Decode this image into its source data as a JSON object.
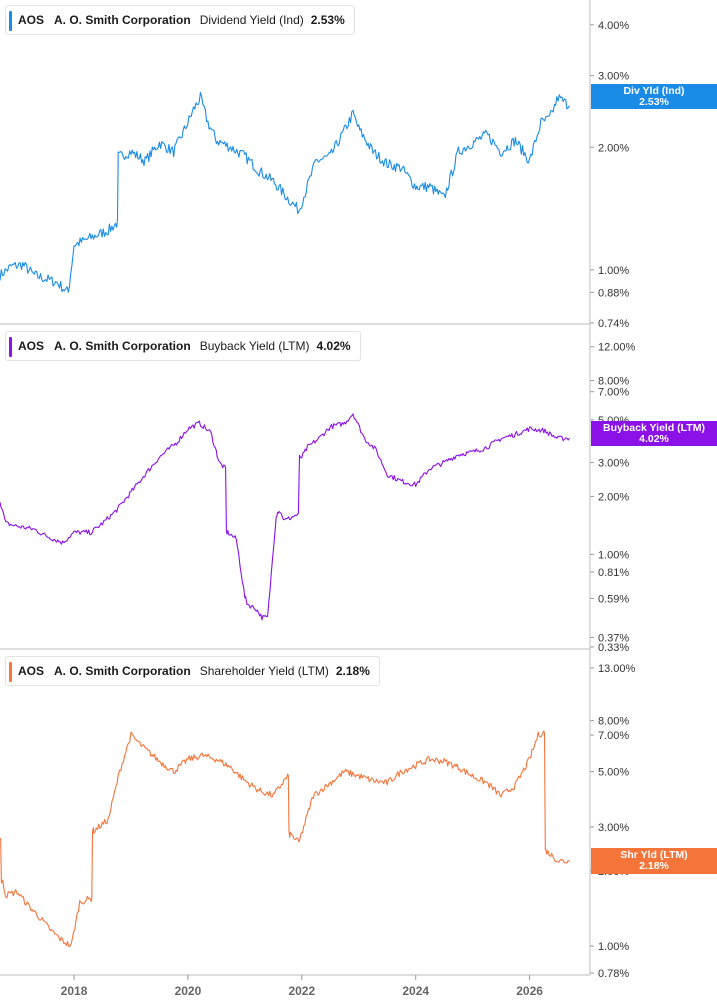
{
  "chart_data": [
    {
      "type": "line",
      "ticker": "AOS",
      "company": "A. O. Smith Corporation",
      "metric": "Dividend Yield (Ind)",
      "latest_value": "2.53%",
      "tag_label": "Div Yld (Ind)",
      "tag_value": "2.53%",
      "color": "#1a8ce8",
      "y_scale": "log",
      "ylim": [
        0.74,
        4.3
      ],
      "y_ticks": [
        "4.00%",
        "3.00%",
        "2.00%",
        "1.00%",
        "0.88%",
        "0.74%"
      ],
      "y_tick_values": [
        4.0,
        3.0,
        2.0,
        1.0,
        0.88,
        0.74
      ],
      "x": [
        2016.7,
        2016.9,
        2017.1,
        2017.3,
        2017.5,
        2017.7,
        2017.9,
        2018.0,
        2018.3,
        2018.6,
        2018.75,
        2018.8,
        2019.0,
        2019.25,
        2019.5,
        2019.75,
        2020.0,
        2020.1,
        2020.22,
        2020.35,
        2020.5,
        2020.75,
        2021.0,
        2021.25,
        2021.5,
        2021.75,
        2021.95,
        2022.25,
        2022.5,
        2022.75,
        2022.9,
        2023.0,
        2023.25,
        2023.5,
        2023.75,
        2024.0,
        2024.25,
        2024.5,
        2024.75,
        2025.0,
        2025.25,
        2025.5,
        2025.75,
        2026.0,
        2026.2,
        2026.35,
        2026.5,
        2026.7
      ],
      "y": [
        0.97,
        1.02,
        1.03,
        0.97,
        0.95,
        0.93,
        0.88,
        1.15,
        1.2,
        1.25,
        1.3,
        1.9,
        1.95,
        1.85,
        2.05,
        1.95,
        2.3,
        2.48,
        2.65,
        2.3,
        2.08,
        2.0,
        1.9,
        1.75,
        1.65,
        1.5,
        1.4,
        1.85,
        1.9,
        2.2,
        2.42,
        2.22,
        1.95,
        1.82,
        1.78,
        1.6,
        1.6,
        1.5,
        1.95,
        2.05,
        2.15,
        1.95,
        2.08,
        1.85,
        2.3,
        2.35,
        2.65,
        2.53
      ]
    },
    {
      "type": "line",
      "ticker": "AOS",
      "company": "A. O. Smith Corporation",
      "metric": "Buyback Yield (LTM)",
      "latest_value": "4.02%",
      "tag_label": "Buyback Yield (LTM)",
      "tag_value": "4.02%",
      "color": "#8b11e8",
      "y_scale": "log",
      "ylim": [
        0.33,
        13.0
      ],
      "y_ticks": [
        "12.00%",
        "8.00%",
        "7.00%",
        "5.00%",
        "3.00%",
        "2.00%",
        "1.00%",
        "0.81%",
        "0.59%",
        "0.37%",
        "0.33%"
      ],
      "y_tick_values": [
        12.0,
        8.0,
        7.0,
        5.0,
        3.0,
        2.0,
        1.0,
        0.81,
        0.59,
        0.37,
        0.33
      ],
      "x": [
        2016.7,
        2016.8,
        2017.0,
        2017.3,
        2017.5,
        2017.8,
        2018.0,
        2018.3,
        2018.5,
        2018.75,
        2019.0,
        2019.2,
        2019.5,
        2019.8,
        2020.0,
        2020.2,
        2020.4,
        2020.5,
        2020.55,
        2020.65,
        2020.7,
        2020.85,
        2021.0,
        2021.05,
        2021.2,
        2021.3,
        2021.4,
        2021.55,
        2021.6,
        2021.7,
        2021.9,
        2022.0,
        2022.1,
        2022.3,
        2022.5,
        2022.75,
        2022.9,
        2023.1,
        2023.3,
        2023.5,
        2023.75,
        2024.0,
        2024.25,
        2024.5,
        2024.75,
        2025.0,
        2025.25,
        2025.5,
        2025.75,
        2026.0,
        2026.25,
        2026.5,
        2026.7
      ],
      "y": [
        1.9,
        1.45,
        1.4,
        1.35,
        1.25,
        1.15,
        1.3,
        1.3,
        1.45,
        1.7,
        2.1,
        2.5,
        3.2,
        3.8,
        4.5,
        4.8,
        4.3,
        3.4,
        3.0,
        2.8,
        1.3,
        1.2,
        0.6,
        0.55,
        0.52,
        0.47,
        0.47,
        1.6,
        1.7,
        1.5,
        1.6,
        3.2,
        3.6,
        4.0,
        4.6,
        4.8,
        5.4,
        4.0,
        3.5,
        2.6,
        2.4,
        2.3,
        2.8,
        3.0,
        3.3,
        3.4,
        3.6,
        4.0,
        4.2,
        4.5,
        4.4,
        4.0,
        4.02
      ]
    },
    {
      "type": "line",
      "ticker": "AOS",
      "company": "A. O. Smith Corporation",
      "metric": "Shareholder Yield (LTM)",
      "latest_value": "2.18%",
      "tag_label": "Shr Yld (LTM)",
      "tag_value": "2.18%",
      "color": "#f5743a",
      "y_scale": "log",
      "ylim": [
        0.78,
        13.0
      ],
      "y_ticks": [
        "13.00%",
        "8.00%",
        "7.00%",
        "5.00%",
        "3.00%",
        "2.00%",
        "1.00%",
        "0.78%"
      ],
      "y_tick_values": [
        13.0,
        8.0,
        7.0,
        5.0,
        3.0,
        2.0,
        1.0,
        0.78
      ],
      "x": [
        2016.7,
        2016.75,
        2016.8,
        2017.0,
        2017.2,
        2017.4,
        2017.6,
        2017.8,
        2017.95,
        2018.1,
        2018.3,
        2018.35,
        2018.6,
        2018.8,
        2019.0,
        2019.2,
        2019.5,
        2019.75,
        2020.0,
        2020.25,
        2020.5,
        2020.75,
        2021.0,
        2021.25,
        2021.5,
        2021.75,
        2021.8,
        2021.95,
        2022.2,
        2022.5,
        2022.75,
        2023.0,
        2023.25,
        2023.5,
        2023.75,
        2024.0,
        2024.25,
        2024.5,
        2024.75,
        2025.0,
        2025.25,
        2025.5,
        2025.75,
        2026.0,
        2026.15,
        2026.25,
        2026.3,
        2026.5,
        2026.7
      ],
      "y": [
        2.7,
        1.8,
        1.6,
        1.65,
        1.45,
        1.3,
        1.15,
        1.05,
        1.0,
        1.5,
        1.55,
        2.9,
        3.2,
        5.0,
        7.0,
        6.3,
        5.5,
        5.0,
        5.6,
        5.8,
        5.6,
        5.2,
        4.6,
        4.2,
        4.0,
        4.8,
        2.8,
        2.6,
        4.0,
        4.5,
        5.0,
        4.8,
        4.6,
        4.5,
        5.0,
        5.3,
        5.6,
        5.5,
        5.2,
        4.8,
        4.5,
        4.0,
        4.4,
        5.6,
        7.0,
        7.2,
        2.4,
        2.2,
        2.18
      ]
    }
  ],
  "x_axis": {
    "xlim": [
      2016.7,
      2026.85
    ],
    "ticks": [
      "2018",
      "2020",
      "2022",
      "2024",
      "2026"
    ],
    "tick_values": [
      2018,
      2020,
      2022,
      2024,
      2026
    ]
  }
}
